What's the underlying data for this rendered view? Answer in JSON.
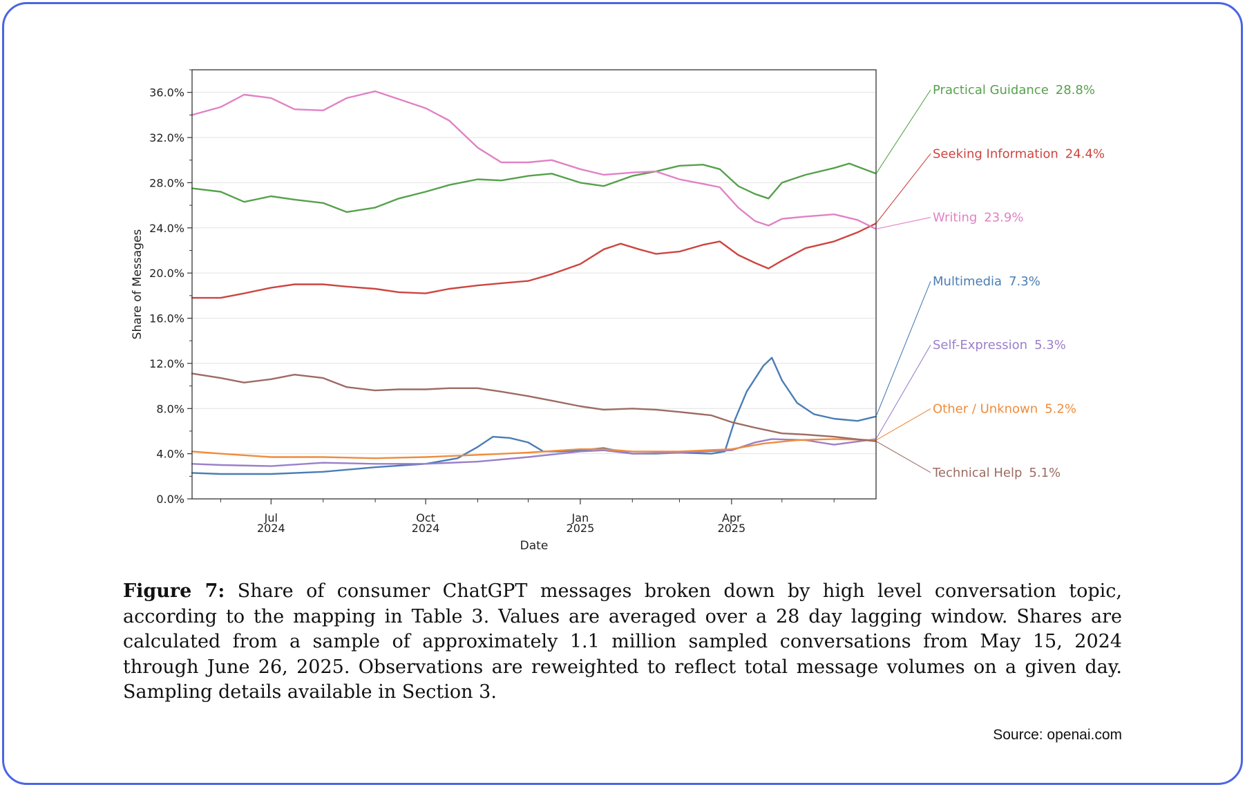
{
  "caption": {
    "label": "Figure 7:",
    "text": "Share of consumer ChatGPT messages broken down by high level conversation topic, according to the mapping in Table 3. Values are averaged over a 28 day lagging window. Shares are calculated from a sample of approximately 1.1 million sampled conversations from May 15, 2024 through June 26, 2025. Observations are reweighted to reflect total message volumes on a given day. Sampling details available in Section 3."
  },
  "source": "Source: openai.com",
  "chart_data": {
    "type": "line",
    "xlabel": "Date",
    "ylabel": "Share of Messages",
    "xlim": [
      "2024-05-15",
      "2025-06-26"
    ],
    "ylim": [
      0,
      0.38
    ],
    "y_ticks": [
      0,
      0.04,
      0.08,
      0.12,
      0.16,
      0.2,
      0.24,
      0.28,
      0.32,
      0.36
    ],
    "y_tick_labels": [
      "0.0%",
      "4.0%",
      "8.0%",
      "12.0%",
      "16.0%",
      "20.0%",
      "24.0%",
      "28.0%",
      "32.0%",
      "36.0%"
    ],
    "x_ticks": [
      {
        "date": "2024-07-01",
        "label": [
          "Jul",
          "2024"
        ]
      },
      {
        "date": "2024-10-01",
        "label": [
          "Oct",
          "2024"
        ]
      },
      {
        "date": "2025-01-01",
        "label": [
          "Jan",
          "2025"
        ]
      },
      {
        "date": "2025-04-01",
        "label": [
          "Apr",
          "2025"
        ]
      }
    ],
    "x_minor_ticks": [
      "2024-06-01",
      "2024-08-01",
      "2024-09-01",
      "2024-11-01",
      "2024-12-01",
      "2025-02-01",
      "2025-03-01",
      "2025-05-01",
      "2025-06-01"
    ],
    "grid": "horizontal",
    "legend": "right, end-of-line labels",
    "series": [
      {
        "name": "Practical Guidance",
        "final_label": "28.8%",
        "color": "#55a14b",
        "points": [
          [
            "2024-05-15",
            0.275
          ],
          [
            "2024-06-01",
            0.272
          ],
          [
            "2024-06-15",
            0.263
          ],
          [
            "2024-07-01",
            0.268
          ],
          [
            "2024-07-15",
            0.265
          ],
          [
            "2024-08-01",
            0.262
          ],
          [
            "2024-08-15",
            0.254
          ],
          [
            "2024-09-01",
            0.258
          ],
          [
            "2024-09-15",
            0.266
          ],
          [
            "2024-10-01",
            0.272
          ],
          [
            "2024-10-15",
            0.278
          ],
          [
            "2024-11-01",
            0.283
          ],
          [
            "2024-11-15",
            0.282
          ],
          [
            "2024-12-01",
            0.286
          ],
          [
            "2024-12-15",
            0.288
          ],
          [
            "2025-01-01",
            0.28
          ],
          [
            "2025-01-15",
            0.277
          ],
          [
            "2025-02-01",
            0.286
          ],
          [
            "2025-02-15",
            0.29
          ],
          [
            "2025-03-01",
            0.295
          ],
          [
            "2025-03-15",
            0.296
          ],
          [
            "2025-03-25",
            0.292
          ],
          [
            "2025-04-05",
            0.277
          ],
          [
            "2025-04-15",
            0.27
          ],
          [
            "2025-04-23",
            0.266
          ],
          [
            "2025-05-01",
            0.28
          ],
          [
            "2025-05-15",
            0.287
          ],
          [
            "2025-06-01",
            0.293
          ],
          [
            "2025-06-10",
            0.297
          ],
          [
            "2025-06-26",
            0.288
          ]
        ]
      },
      {
        "name": "Seeking Information",
        "final_label": "24.4%",
        "color": "#cc4540",
        "points": [
          [
            "2024-05-15",
            0.178
          ],
          [
            "2024-06-01",
            0.178
          ],
          [
            "2024-06-15",
            0.182
          ],
          [
            "2024-07-01",
            0.187
          ],
          [
            "2024-07-15",
            0.19
          ],
          [
            "2024-08-01",
            0.19
          ],
          [
            "2024-08-15",
            0.188
          ],
          [
            "2024-09-01",
            0.186
          ],
          [
            "2024-09-15",
            0.183
          ],
          [
            "2024-10-01",
            0.182
          ],
          [
            "2024-10-15",
            0.186
          ],
          [
            "2024-11-01",
            0.189
          ],
          [
            "2024-11-15",
            0.191
          ],
          [
            "2024-12-01",
            0.193
          ],
          [
            "2024-12-15",
            0.199
          ],
          [
            "2025-01-01",
            0.208
          ],
          [
            "2025-01-15",
            0.221
          ],
          [
            "2025-01-25",
            0.226
          ],
          [
            "2025-02-05",
            0.221
          ],
          [
            "2025-02-15",
            0.217
          ],
          [
            "2025-03-01",
            0.219
          ],
          [
            "2025-03-15",
            0.225
          ],
          [
            "2025-03-25",
            0.228
          ],
          [
            "2025-04-05",
            0.216
          ],
          [
            "2025-04-15",
            0.209
          ],
          [
            "2025-04-23",
            0.204
          ],
          [
            "2025-05-01",
            0.211
          ],
          [
            "2025-05-15",
            0.222
          ],
          [
            "2025-06-01",
            0.228
          ],
          [
            "2025-06-15",
            0.236
          ],
          [
            "2025-06-26",
            0.244
          ]
        ]
      },
      {
        "name": "Writing",
        "final_label": "23.9%",
        "color": "#e082c5",
        "points": [
          [
            "2024-05-15",
            0.34
          ],
          [
            "2024-06-01",
            0.347
          ],
          [
            "2024-06-15",
            0.358
          ],
          [
            "2024-07-01",
            0.355
          ],
          [
            "2024-07-15",
            0.345
          ],
          [
            "2024-08-01",
            0.344
          ],
          [
            "2024-08-15",
            0.355
          ],
          [
            "2024-09-01",
            0.361
          ],
          [
            "2024-09-15",
            0.354
          ],
          [
            "2024-10-01",
            0.346
          ],
          [
            "2024-10-15",
            0.335
          ],
          [
            "2024-11-01",
            0.311
          ],
          [
            "2024-11-15",
            0.298
          ],
          [
            "2024-12-01",
            0.298
          ],
          [
            "2024-12-15",
            0.3
          ],
          [
            "2025-01-01",
            0.292
          ],
          [
            "2025-01-15",
            0.287
          ],
          [
            "2025-02-01",
            0.289
          ],
          [
            "2025-02-15",
            0.29
          ],
          [
            "2025-03-01",
            0.283
          ],
          [
            "2025-03-15",
            0.279
          ],
          [
            "2025-03-25",
            0.276
          ],
          [
            "2025-04-05",
            0.258
          ],
          [
            "2025-04-15",
            0.246
          ],
          [
            "2025-04-23",
            0.242
          ],
          [
            "2025-05-01",
            0.248
          ],
          [
            "2025-05-15",
            0.25
          ],
          [
            "2025-06-01",
            0.252
          ],
          [
            "2025-06-15",
            0.247
          ],
          [
            "2025-06-26",
            0.239
          ]
        ]
      },
      {
        "name": "Multimedia",
        "final_label": "7.3%",
        "color": "#4a7db5",
        "points": [
          [
            "2024-05-15",
            0.023
          ],
          [
            "2024-06-01",
            0.022
          ],
          [
            "2024-07-01",
            0.022
          ],
          [
            "2024-08-01",
            0.024
          ],
          [
            "2024-09-01",
            0.028
          ],
          [
            "2024-10-01",
            0.031
          ],
          [
            "2024-10-20",
            0.036
          ],
          [
            "2024-11-01",
            0.046
          ],
          [
            "2024-11-10",
            0.055
          ],
          [
            "2024-11-20",
            0.054
          ],
          [
            "2024-12-01",
            0.05
          ],
          [
            "2024-12-10",
            0.042
          ],
          [
            "2024-12-20",
            0.042
          ],
          [
            "2025-01-01",
            0.043
          ],
          [
            "2025-01-15",
            0.045
          ],
          [
            "2025-02-01",
            0.04
          ],
          [
            "2025-02-15",
            0.04
          ],
          [
            "2025-03-01",
            0.041
          ],
          [
            "2025-03-20",
            0.04
          ],
          [
            "2025-03-28",
            0.042
          ],
          [
            "2025-04-03",
            0.07
          ],
          [
            "2025-04-10",
            0.095
          ],
          [
            "2025-04-20",
            0.118
          ],
          [
            "2025-04-25",
            0.125
          ],
          [
            "2025-05-01",
            0.105
          ],
          [
            "2025-05-10",
            0.085
          ],
          [
            "2025-05-20",
            0.075
          ],
          [
            "2025-06-01",
            0.071
          ],
          [
            "2025-06-15",
            0.069
          ],
          [
            "2025-06-26",
            0.073
          ]
        ]
      },
      {
        "name": "Self-Expression",
        "final_label": "5.3%",
        "color": "#9b7fca",
        "points": [
          [
            "2024-05-15",
            0.031
          ],
          [
            "2024-06-01",
            0.03
          ],
          [
            "2024-07-01",
            0.029
          ],
          [
            "2024-08-01",
            0.032
          ],
          [
            "2024-09-01",
            0.031
          ],
          [
            "2024-10-01",
            0.031
          ],
          [
            "2024-11-01",
            0.033
          ],
          [
            "2024-12-01",
            0.037
          ],
          [
            "2025-01-01",
            0.042
          ],
          [
            "2025-01-15",
            0.043
          ],
          [
            "2025-02-01",
            0.04
          ],
          [
            "2025-03-01",
            0.041
          ],
          [
            "2025-04-01",
            0.043
          ],
          [
            "2025-04-15",
            0.05
          ],
          [
            "2025-04-25",
            0.053
          ],
          [
            "2025-05-15",
            0.052
          ],
          [
            "2025-06-01",
            0.048
          ],
          [
            "2025-06-26",
            0.053
          ]
        ]
      },
      {
        "name": "Other / Unknown",
        "final_label": "5.2%",
        "color": "#ef8c3c",
        "points": [
          [
            "2024-05-15",
            0.042
          ],
          [
            "2024-06-01",
            0.04
          ],
          [
            "2024-07-01",
            0.037
          ],
          [
            "2024-08-01",
            0.037
          ],
          [
            "2024-09-01",
            0.036
          ],
          [
            "2024-10-01",
            0.037
          ],
          [
            "2024-11-01",
            0.039
          ],
          [
            "2024-12-01",
            0.041
          ],
          [
            "2025-01-01",
            0.044
          ],
          [
            "2025-01-15",
            0.044
          ],
          [
            "2025-02-01",
            0.042
          ],
          [
            "2025-03-01",
            0.042
          ],
          [
            "2025-04-01",
            0.044
          ],
          [
            "2025-04-20",
            0.049
          ],
          [
            "2025-05-10",
            0.052
          ],
          [
            "2025-06-01",
            0.053
          ],
          [
            "2025-06-26",
            0.052
          ]
        ]
      },
      {
        "name": "Technical Help",
        "final_label": "5.1%",
        "color": "#9c6b62",
        "points": [
          [
            "2024-05-15",
            0.111
          ],
          [
            "2024-06-01",
            0.107
          ],
          [
            "2024-06-15",
            0.103
          ],
          [
            "2024-07-01",
            0.106
          ],
          [
            "2024-07-15",
            0.11
          ],
          [
            "2024-08-01",
            0.107
          ],
          [
            "2024-08-15",
            0.099
          ],
          [
            "2024-09-01",
            0.096
          ],
          [
            "2024-09-15",
            0.097
          ],
          [
            "2024-10-01",
            0.097
          ],
          [
            "2024-10-15",
            0.098
          ],
          [
            "2024-11-01",
            0.098
          ],
          [
            "2024-11-15",
            0.095
          ],
          [
            "2024-12-01",
            0.091
          ],
          [
            "2024-12-15",
            0.087
          ],
          [
            "2025-01-01",
            0.082
          ],
          [
            "2025-01-15",
            0.079
          ],
          [
            "2025-02-01",
            0.08
          ],
          [
            "2025-02-15",
            0.079
          ],
          [
            "2025-03-01",
            0.077
          ],
          [
            "2025-03-20",
            0.074
          ],
          [
            "2025-04-01",
            0.068
          ],
          [
            "2025-04-15",
            0.063
          ],
          [
            "2025-05-01",
            0.058
          ],
          [
            "2025-05-15",
            0.057
          ],
          [
            "2025-06-01",
            0.055
          ],
          [
            "2025-06-26",
            0.051
          ]
        ]
      }
    ]
  }
}
